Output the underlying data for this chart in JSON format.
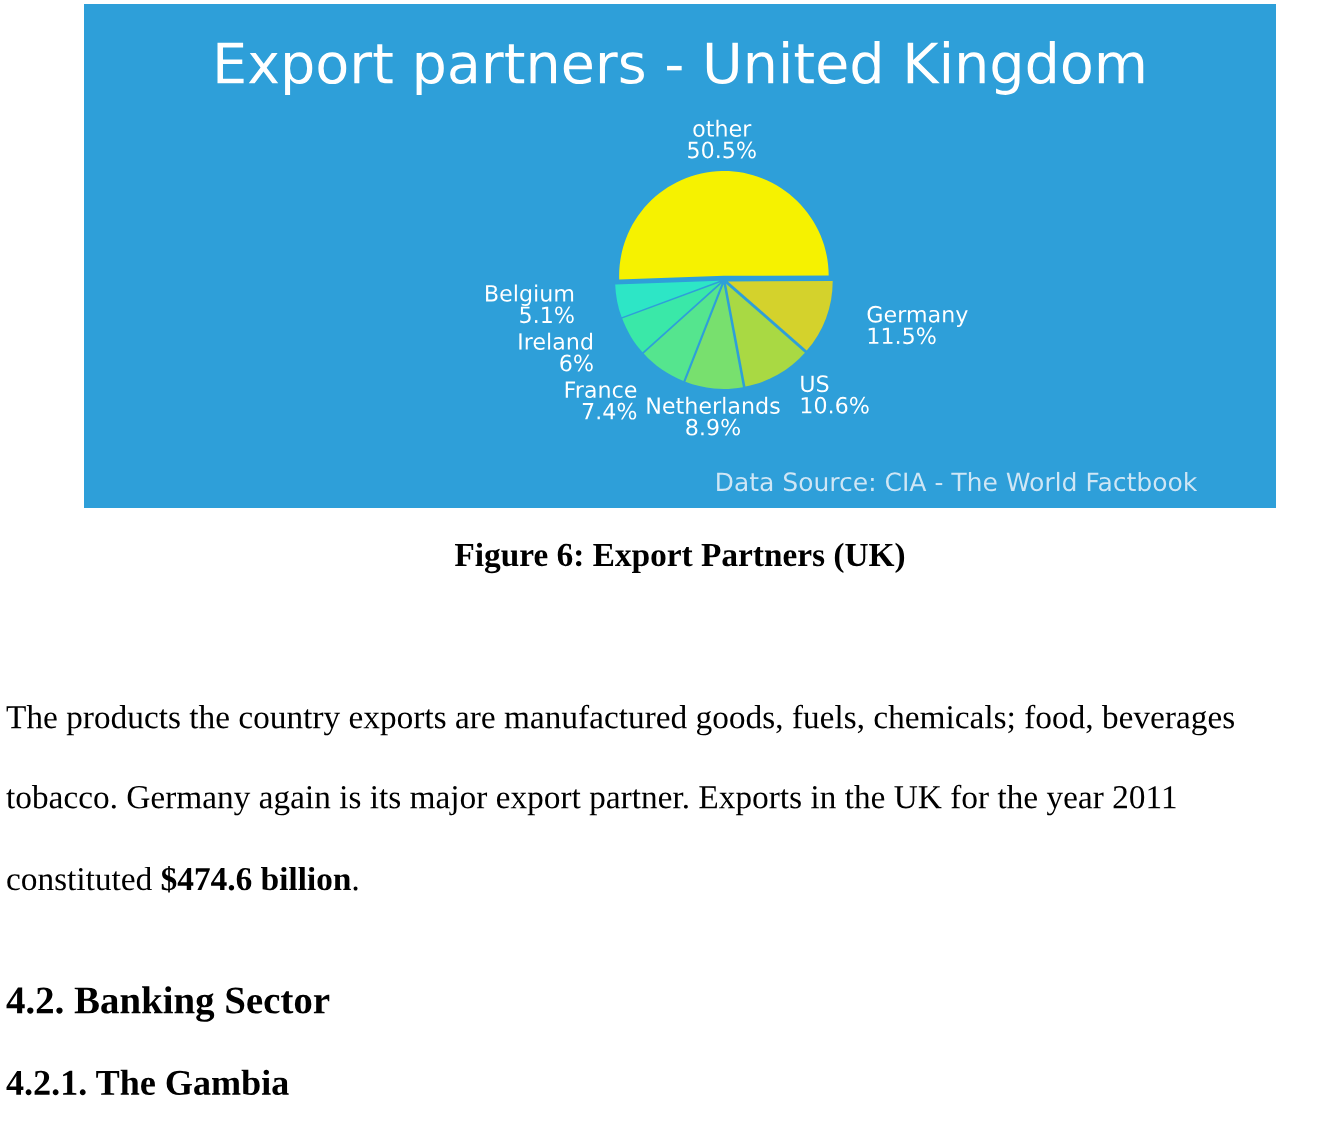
{
  "chart_data": {
    "type": "pie",
    "title": "Export partners - United Kingdom",
    "categories": [
      "other",
      "Germany",
      "US",
      "Netherlands",
      "France",
      "Ireland",
      "Belgium"
    ],
    "values": [
      50.5,
      11.5,
      10.6,
      8.9,
      7.4,
      6,
      5.1
    ],
    "value_labels": [
      "50.5%",
      "11.5%",
      "10.6%",
      "8.9%",
      "7.4%",
      "6%",
      "5.1%"
    ],
    "colors": [
      "#f6f200",
      "#d4d22c",
      "#a9d943",
      "#78e06e",
      "#55e58e",
      "#3ae8a8",
      "#2de6c6"
    ],
    "annotations": [
      "Data Source: CIA - The World Factbook",
      "Figure 6: Export Partners (UK)",
      "The products the country exports are manufactured goods, fuels, chemicals; food, beverages",
      "tobacco. Germany again is its major export partner. Exports in the UK for the year 2011",
      "constituted",
      "$474.6 billion",
      ".",
      "4.2. Banking Sector",
      "4.2.1. The Gambia"
    ]
  }
}
